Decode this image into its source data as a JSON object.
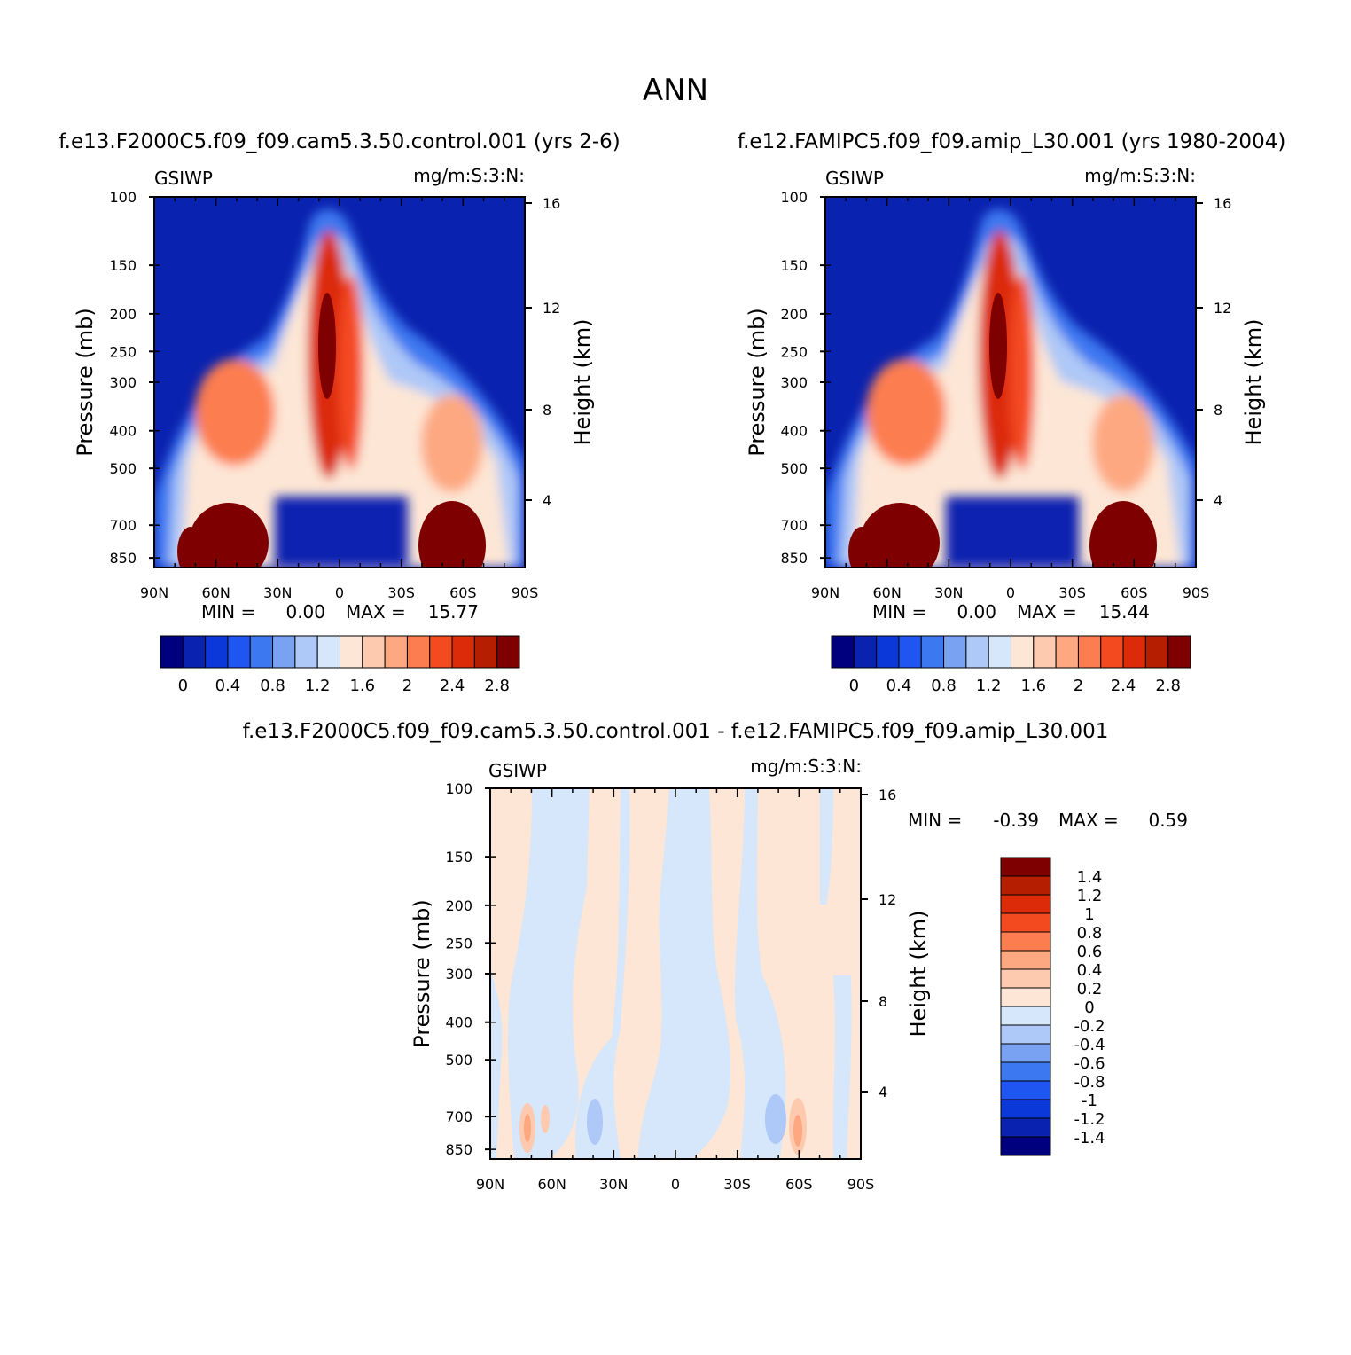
{
  "figure_title": "ANN",
  "colors": {
    "levels15": [
      "#00007f",
      "#0a22b0",
      "#0b38d9",
      "#1f55f0",
      "#3c78f0",
      "#79a2f2",
      "#aec8f7",
      "#d6e7fb",
      "#fde6d5",
      "#fdcab0",
      "#fda881",
      "#fc7d4f",
      "#f44a20",
      "#dc2b08",
      "#b61e00",
      "#7f0000"
    ],
    "diff": [
      "#00007f",
      "#0a22b0",
      "#0b38d9",
      "#1f55f0",
      "#3c78f0",
      "#79a2f2",
      "#aec8f7",
      "#d6e7fb",
      "#fde6d5",
      "#fdcab0",
      "#fda881",
      "#fc7d4f",
      "#f44a20",
      "#dc2b08",
      "#b61e00",
      "#7f0000"
    ]
  },
  "chart_data": [
    {
      "type": "heatmap",
      "title": "f.e13.F2000C5.f09_f09.cam5.3.50.control.001 (yrs 2-6)",
      "left_label": "GSIWP",
      "right_label": "mg/m:S:3:N:",
      "xlabel": "",
      "ylabel": "Pressure (mb)",
      "y2label": "Height (km)",
      "x_ticks": [
        "90N",
        "60N",
        "30N",
        "0",
        "30S",
        "60S",
        "90S"
      ],
      "y_ticks": [
        100,
        150,
        200,
        250,
        300,
        400,
        500,
        700,
        850
      ],
      "y2_ticks": [
        16,
        12,
        8,
        4
      ],
      "xlim": [
        90,
        -90
      ],
      "ylim": [
        100,
        900
      ],
      "stats": {
        "min_label": "MIN =",
        "min": "0.00",
        "max_label": "MAX =",
        "max": "15.77"
      },
      "colorbar_labels": [
        "0",
        "0.4",
        "0.8",
        "1.2",
        "1.6",
        "2",
        "2.4",
        "2.8"
      ],
      "features": [
        {
          "lat": 2,
          "p": 260,
          "value": 3.0
        },
        {
          "lat": -5,
          "p": 270,
          "value": 2.6
        },
        {
          "lat": 0,
          "p": 500,
          "value": 2.4
        },
        {
          "lat": 45,
          "p": 380,
          "value": 2.4
        },
        {
          "lat": -50,
          "p": 450,
          "value": 2.2
        },
        {
          "lat": 55,
          "p": 780,
          "value": 3.0
        },
        {
          "lat": -58,
          "p": 760,
          "value": 3.0
        }
      ]
    },
    {
      "type": "heatmap",
      "title": "f.e12.FAMIPC5.f09_f09.amip_L30.001 (yrs 1980-2004)",
      "left_label": "GSIWP",
      "right_label": "mg/m:S:3:N:",
      "xlabel": "",
      "ylabel": "Pressure (mb)",
      "y2label": "Height (km)",
      "x_ticks": [
        "90N",
        "60N",
        "30N",
        "0",
        "30S",
        "60S",
        "90S"
      ],
      "y_ticks": [
        100,
        150,
        200,
        250,
        300,
        400,
        500,
        700,
        850
      ],
      "y2_ticks": [
        16,
        12,
        8,
        4
      ],
      "xlim": [
        90,
        -90
      ],
      "ylim": [
        100,
        900
      ],
      "stats": {
        "min_label": "MIN =",
        "min": "0.00",
        "max_label": "MAX =",
        "max": "15.44"
      },
      "colorbar_labels": [
        "0",
        "0.4",
        "0.8",
        "1.2",
        "1.6",
        "2",
        "2.4",
        "2.8"
      ],
      "features": [
        {
          "lat": 2,
          "p": 260,
          "value": 3.0
        },
        {
          "lat": -5,
          "p": 270,
          "value": 2.5
        },
        {
          "lat": 0,
          "p": 500,
          "value": 2.4
        },
        {
          "lat": 45,
          "p": 380,
          "value": 2.4
        },
        {
          "lat": -50,
          "p": 450,
          "value": 2.1
        },
        {
          "lat": 55,
          "p": 780,
          "value": 3.0
        },
        {
          "lat": -58,
          "p": 760,
          "value": 3.0
        }
      ]
    },
    {
      "type": "heatmap",
      "title": "f.e13.F2000C5.f09_f09.cam5.3.50.control.001 - f.e12.FAMIPC5.f09_f09.amip_L30.001",
      "left_label": "GSIWP",
      "right_label": "mg/m:S:3:N:",
      "xlabel": "",
      "ylabel": "Pressure (mb)",
      "y2label": "Height (km)",
      "x_ticks": [
        "90N",
        "60N",
        "30N",
        "0",
        "30S",
        "60S",
        "90S"
      ],
      "y_ticks": [
        100,
        150,
        200,
        250,
        300,
        400,
        500,
        700,
        850
      ],
      "y2_ticks": [
        16,
        12,
        8,
        4
      ],
      "xlim": [
        90,
        -90
      ],
      "ylim": [
        100,
        900
      ],
      "stats": {
        "min_label": "MIN =",
        "min": "-0.39",
        "max_label": "MAX =",
        "max": "0.59"
      },
      "colorbar_labels": [
        "1.4",
        "1.2",
        "1",
        "0.8",
        "0.6",
        "0.4",
        "0.2",
        "0",
        "-0.2",
        "-0.4",
        "-0.6",
        "-0.8",
        "-1",
        "-1.2",
        "-1.4"
      ],
      "features": [
        {
          "lat": 72,
          "p": 780,
          "value": 0.59
        },
        {
          "lat": 63,
          "p": 760,
          "value": 0.4
        },
        {
          "lat": 40,
          "p": 780,
          "value": -0.39
        },
        {
          "lat": -48,
          "p": 760,
          "value": -0.39
        },
        {
          "lat": -60,
          "p": 780,
          "value": 0.5
        }
      ]
    }
  ]
}
